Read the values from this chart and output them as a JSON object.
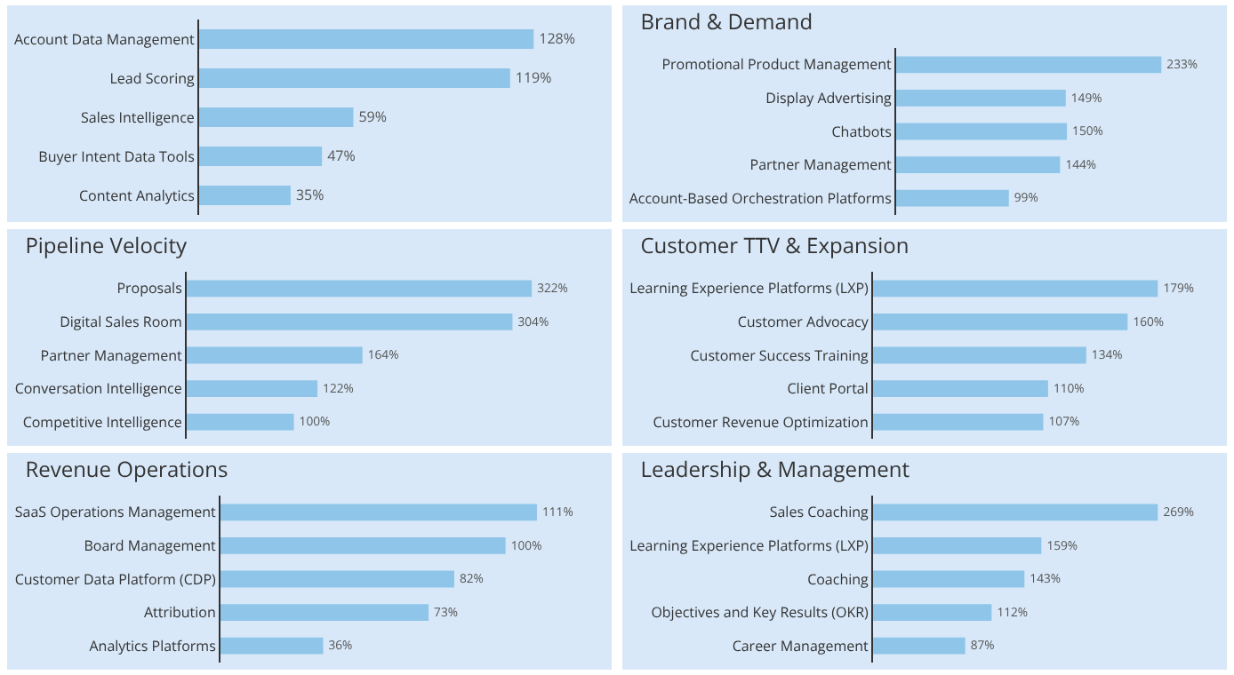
{
  "chart_data": [
    {
      "type": "bar",
      "orientation": "horizontal",
      "color": "#8ec5e8",
      "categories": [
        "Account Data Management",
        "Lead Scoring",
        "Sales Intelligence",
        "Buyer Intent Data Tools",
        "Content Analytics"
      ],
      "values": [
        128,
        119,
        59,
        47,
        35
      ],
      "value_labels": [
        "128%",
        "119%",
        "59%",
        "47%",
        "35%"
      ]
    },
    {
      "type": "bar",
      "orientation": "horizontal",
      "color": "#8ec5e8",
      "title": "Brand & Demand",
      "categories": [
        "Promotional Product Management",
        "Display Advertising",
        "Chatbots",
        "Partner Management",
        "Account-Based Orchestration Platforms"
      ],
      "values": [
        233,
        149,
        150,
        144,
        99
      ],
      "value_labels": [
        "233%",
        "149%",
        "150%",
        "144%",
        "99%"
      ]
    },
    {
      "type": "bar",
      "orientation": "horizontal",
      "color": "#8ec5e8",
      "title": "Pipeline Velocity",
      "categories": [
        "Proposals",
        "Digital Sales Room",
        "Partner Management",
        "Conversation Intelligence",
        "Competitive Intelligence"
      ],
      "values": [
        322,
        304,
        164,
        122,
        100
      ],
      "value_labels": [
        "322%",
        "304%",
        "164%",
        "122%",
        "100%"
      ]
    },
    {
      "type": "bar",
      "orientation": "horizontal",
      "color": "#8ec5e8",
      "title": "Customer TTV & Expansion",
      "categories": [
        "Learning Experience Platforms (LXP)",
        "Customer Advocacy",
        "Customer Success Training",
        "Client Portal",
        "Customer Revenue Optimization"
      ],
      "values": [
        179,
        160,
        134,
        110,
        107
      ],
      "value_labels": [
        "179%",
        "160%",
        "134%",
        "110%",
        "107%"
      ]
    },
    {
      "type": "bar",
      "orientation": "horizontal",
      "color": "#8ec5e8",
      "title": "Revenue Operations",
      "categories": [
        "SaaS Operations Management",
        "Board Management",
        "Customer Data Platform (CDP)",
        "Attribution",
        "Analytics Platforms"
      ],
      "values": [
        111,
        100,
        82,
        73,
        36
      ],
      "value_labels": [
        "111%",
        "100%",
        "82%",
        "73%",
        "36%"
      ]
    },
    {
      "type": "bar",
      "orientation": "horizontal",
      "color": "#8ec5e8",
      "title": "Leadership & Management",
      "categories": [
        "Sales Coaching",
        "Learning Experience Platforms (LXP)",
        "Coaching",
        "Objectives and Key Results (OKR)",
        "Career Management"
      ],
      "values": [
        269,
        159,
        143,
        112,
        87
      ],
      "value_labels": [
        "269%",
        "159%",
        "143%",
        "112%",
        "87%"
      ]
    }
  ]
}
